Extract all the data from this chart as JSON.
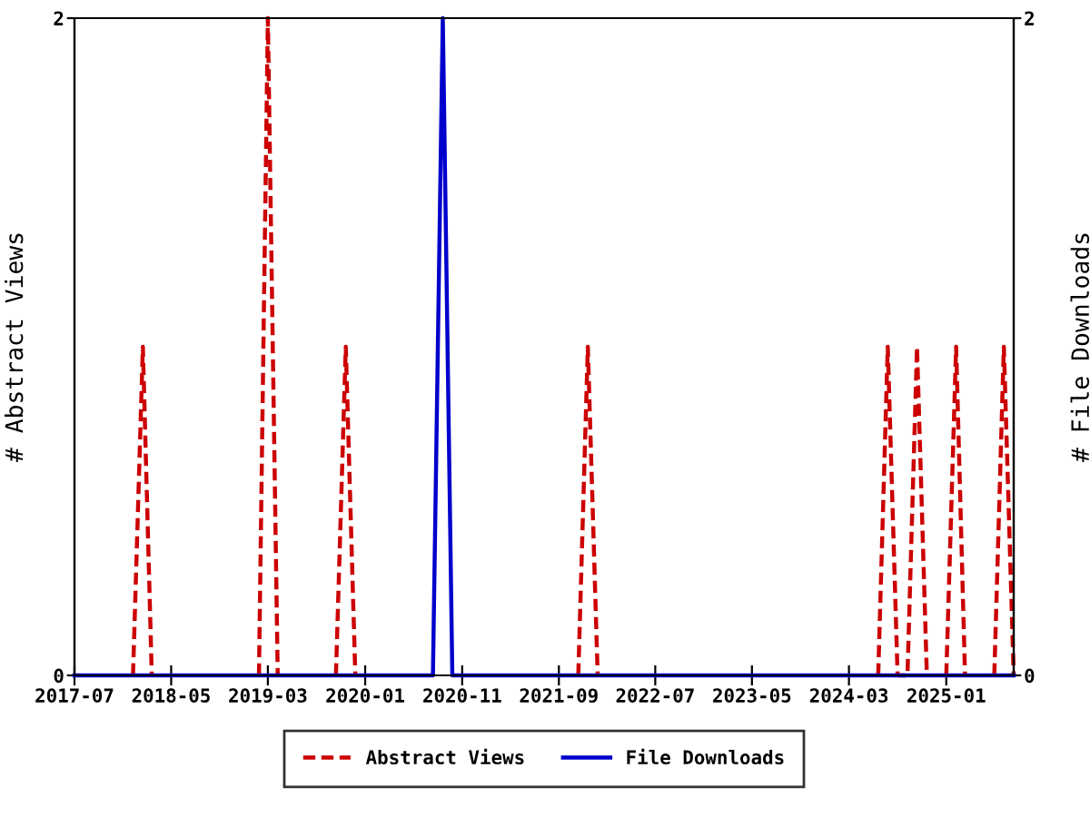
{
  "chart_data": {
    "type": "line",
    "x": [
      "2017-07",
      "2017-08",
      "2017-09",
      "2017-10",
      "2017-11",
      "2017-12",
      "2018-01",
      "2018-02",
      "2018-03",
      "2018-04",
      "2018-05",
      "2018-06",
      "2018-07",
      "2018-08",
      "2018-09",
      "2018-10",
      "2018-11",
      "2018-12",
      "2019-01",
      "2019-02",
      "2019-03",
      "2019-04",
      "2019-05",
      "2019-06",
      "2019-07",
      "2019-08",
      "2019-09",
      "2019-10",
      "2019-11",
      "2019-12",
      "2020-01",
      "2020-02",
      "2020-03",
      "2020-04",
      "2020-05",
      "2020-06",
      "2020-07",
      "2020-08",
      "2020-09",
      "2020-10",
      "2020-11",
      "2020-12",
      "2021-01",
      "2021-02",
      "2021-03",
      "2021-04",
      "2021-05",
      "2021-06",
      "2021-07",
      "2021-08",
      "2021-09",
      "2021-10",
      "2021-11",
      "2021-12",
      "2022-01",
      "2022-02",
      "2022-03",
      "2022-04",
      "2022-05",
      "2022-06",
      "2022-07",
      "2022-08",
      "2022-09",
      "2022-10",
      "2022-11",
      "2022-12",
      "2023-01",
      "2023-02",
      "2023-03",
      "2023-04",
      "2023-05",
      "2023-06",
      "2023-07",
      "2023-08",
      "2023-09",
      "2023-10",
      "2023-11",
      "2023-12",
      "2024-01",
      "2024-02",
      "2024-03",
      "2024-04",
      "2024-05",
      "2024-06",
      "2024-07",
      "2024-08",
      "2024-09",
      "2024-10",
      "2024-11",
      "2024-12",
      "2025-01",
      "2025-02",
      "2025-03",
      "2025-04",
      "2025-05",
      "2025-06",
      "2025-07",
      "2025-08"
    ],
    "series": [
      {
        "name": "Abstract Views",
        "color": "#cc0000",
        "line_style": "dashed",
        "values": [
          null,
          null,
          null,
          null,
          null,
          null,
          0,
          1,
          0,
          null,
          null,
          null,
          null,
          null,
          null,
          null,
          null,
          null,
          null,
          0,
          2,
          0,
          null,
          null,
          null,
          null,
          null,
          0,
          1,
          0,
          null,
          null,
          null,
          null,
          null,
          null,
          null,
          null,
          null,
          null,
          null,
          null,
          null,
          null,
          null,
          null,
          null,
          null,
          null,
          null,
          null,
          null,
          0,
          1,
          0,
          null,
          null,
          null,
          null,
          null,
          null,
          null,
          null,
          null,
          null,
          null,
          null,
          null,
          null,
          null,
          null,
          null,
          null,
          null,
          null,
          null,
          null,
          null,
          null,
          null,
          null,
          null,
          null,
          0,
          1,
          0,
          0,
          1,
          0,
          null,
          0,
          1,
          0,
          null,
          null,
          0,
          1,
          0
        ]
      },
      {
        "name": "File Downloads",
        "color": "#0000cc",
        "line_style": "solid",
        "axis": "y2",
        "values": [
          0,
          0,
          0,
          0,
          0,
          0,
          0,
          0,
          0,
          0,
          0,
          0,
          0,
          0,
          0,
          0,
          0,
          0,
          0,
          0,
          0,
          0,
          0,
          0,
          0,
          0,
          0,
          0,
          0,
          0,
          0,
          0,
          0,
          0,
          0,
          0,
          0,
          0,
          2,
          0,
          0,
          0,
          0,
          0,
          0,
          0,
          0,
          0,
          0,
          0,
          0,
          0,
          0,
          0,
          0,
          0,
          0,
          0,
          0,
          0,
          0,
          0,
          0,
          0,
          0,
          0,
          0,
          0,
          0,
          0,
          0,
          0,
          0,
          0,
          0,
          0,
          0,
          0,
          0,
          0,
          0,
          0,
          0,
          0,
          0,
          0,
          0,
          0,
          0,
          0,
          0,
          0,
          0,
          0,
          0,
          0,
          0,
          0
        ]
      }
    ],
    "ylabel": "# Abstract Views",
    "y2label": "# File Downloads",
    "xlim": [
      "2017-07",
      "2025-08"
    ],
    "xticks": [
      "2017-07",
      "2018-05",
      "2019-03",
      "2020-01",
      "2020-11",
      "2021-09",
      "2022-07",
      "2023-05",
      "2024-03",
      "2025-01"
    ],
    "ylim": [
      0,
      2
    ],
    "yticks": [
      0,
      2
    ],
    "y2lim": [
      0,
      2
    ],
    "y2ticks": [
      0,
      2
    ],
    "grid": false,
    "legend": "bottom",
    "marker": "none"
  }
}
